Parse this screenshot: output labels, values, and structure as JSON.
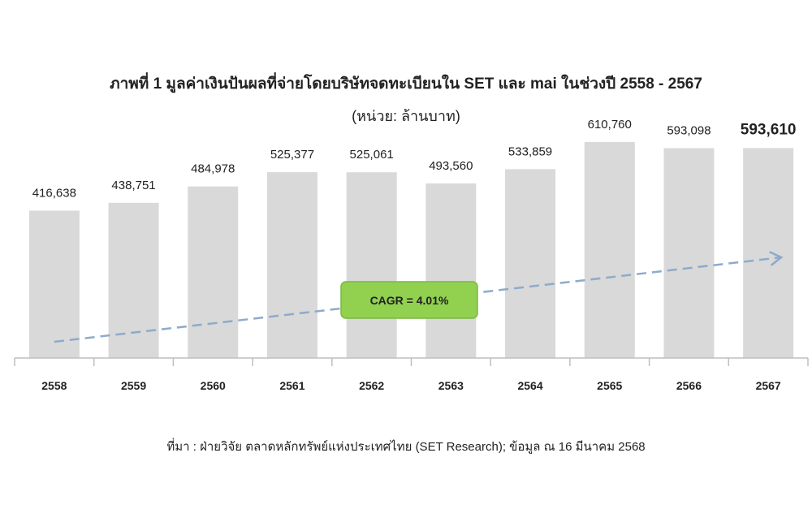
{
  "title": "ภาพที่ 1 มูลค่าเงินปันผลที่จ่ายโดยบริษัทจดทะเบียนใน SET และ mai ในช่วงปี 2558 - 2567",
  "subtitle": "(หน่วย:  ล้านบาท)",
  "source": "ที่มา : ฝ่ายวิจัย ตลาดหลักทรัพย์แห่งประเทศไทย (SET Research); ข้อมูล ณ 16 มีนาคม 2568",
  "chart_data": {
    "type": "bar",
    "categories": [
      "2558",
      "2559",
      "2560",
      "2561",
      "2562",
      "2563",
      "2564",
      "2565",
      "2566",
      "2567"
    ],
    "values": [
      416638,
      438751,
      484978,
      525377,
      525061,
      493560,
      533859,
      610760,
      593098,
      593610
    ],
    "value_labels": [
      "416,638",
      "438,751",
      "484,978",
      "525,377",
      "525,061",
      "493,560",
      "533,859",
      "610,760",
      "593,098",
      "593,610"
    ],
    "highlight_last_label": true,
    "ylim": [
      0,
      700000
    ],
    "grid": false,
    "bar_color": "#d9d9d9",
    "annotation": {
      "label": "CAGR = 4.01%",
      "fill": "#92d050",
      "border": "#7ab840",
      "trend_arrow_color": "#8eaacb"
    }
  }
}
